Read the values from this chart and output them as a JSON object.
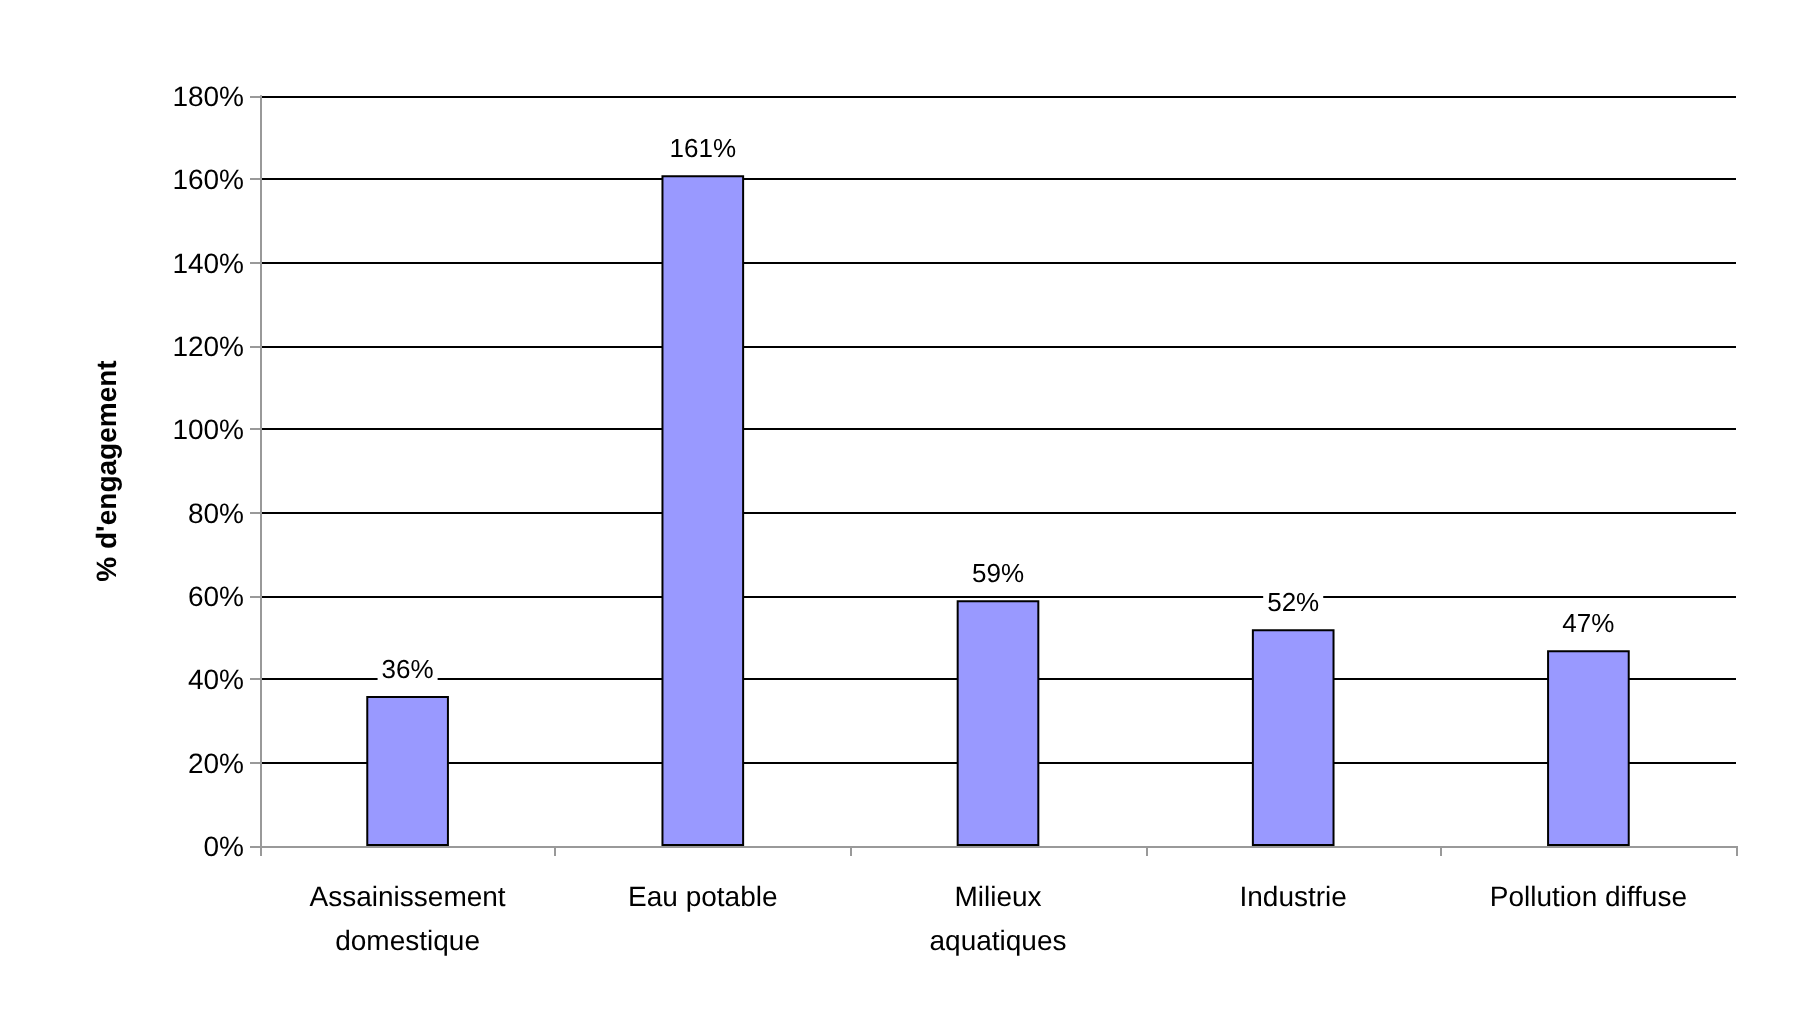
{
  "chart_data": {
    "type": "bar",
    "ylabel": "% d'engagement",
    "categories": [
      "Assainissement\ndomestique",
      "Eau potable",
      "Milieux\naquatiques",
      "Industrie",
      "Pollution diffuse"
    ],
    "values": [
      36,
      161,
      59,
      52,
      47
    ],
    "value_labels": [
      "36%",
      "161%",
      "59%",
      "52%",
      "47%"
    ],
    "color": "#9999ff",
    "ylim": [
      0,
      180
    ],
    "yticks": [
      {
        "value": 0,
        "label": "0%"
      },
      {
        "value": 20,
        "label": "20%"
      },
      {
        "value": 40,
        "label": "40%"
      },
      {
        "value": 60,
        "label": "60%"
      },
      {
        "value": 80,
        "label": "80%"
      },
      {
        "value": 100,
        "label": "100%"
      },
      {
        "value": 120,
        "label": "120%"
      },
      {
        "value": 140,
        "label": "140%"
      },
      {
        "value": 160,
        "label": "160%"
      },
      {
        "value": 180,
        "label": "180%"
      }
    ],
    "grid": "y"
  }
}
